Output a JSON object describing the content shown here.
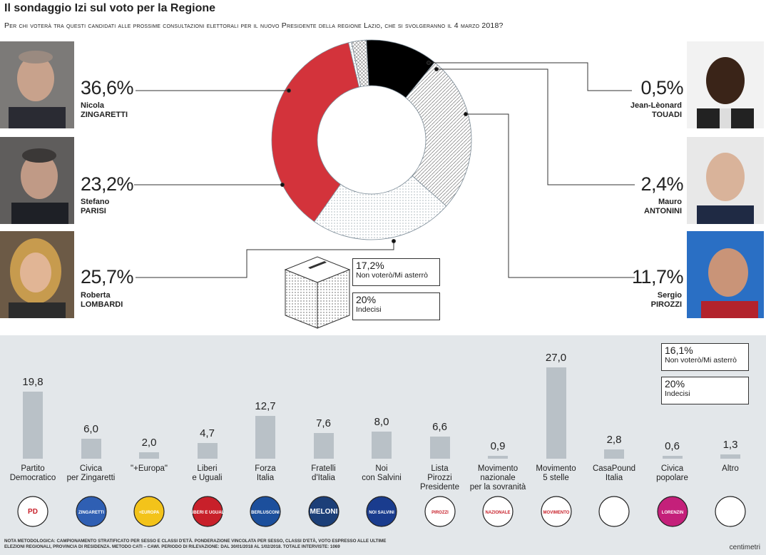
{
  "header": {
    "title": "Il sondaggio Izi sul voto per la Regione",
    "subtitle": "Per chi voterà tra questi candidati alle prossime consultazioni elettorali per il nuovo Presidente della regione Lazio, che si svolgeranno il 4 marzo 2018?"
  },
  "chart_data": [
    {
      "type": "pie",
      "categories": [
        "Nicola ZINGARETTI",
        "Jean-Lèonard TOUADI",
        "Mauro ANTONINI",
        "Sergio PIROZZI",
        "Roberta LOMBARDI",
        "Stefano PARISI"
      ],
      "values": [
        36.6,
        0.5,
        2.4,
        11.7,
        25.7,
        23.2
      ],
      "colors": [
        "#d3333b",
        "#ffffff",
        "#ffffff",
        "#000000",
        "#ffffff",
        "#ffffff"
      ],
      "patterns": [
        "solid",
        "dots",
        "crosshatch",
        "solid",
        "diagonal",
        "dots"
      ]
    },
    {
      "type": "bar",
      "categories": [
        "Partito Democratico",
        "Civica per Zingaretti",
        "\"+Europa\"",
        "Liberi e Uguali",
        "Forza Italia",
        "Fratelli d'Italia",
        "Noi con Salvini",
        "Lista Pirozzi Presidente",
        "Movimento nazionale per la sovranità",
        "Movimento 5 stelle",
        "CasaPound Italia",
        "Civica popolare",
        "Altro"
      ],
      "values": [
        19.8,
        6.0,
        2.0,
        4.7,
        12.7,
        7.6,
        8.0,
        6.6,
        0.9,
        27.0,
        2.8,
        0.6,
        1.3
      ],
      "ylim": [
        0,
        27.0
      ],
      "bar_color": "#b9c1c7"
    }
  ],
  "candidates": {
    "zingaretti": {
      "pct": "36,6%",
      "first": "Nicola",
      "last": "ZINGARETTI"
    },
    "parisi": {
      "pct": "23,2%",
      "first": "Stefano",
      "last": "PARISI"
    },
    "lombardi": {
      "pct": "25,7%",
      "first": "Roberta",
      "last": "LOMBARDI"
    },
    "touadi": {
      "pct": "0,5%",
      "first": "Jean-Lèonard",
      "last": "TOUADI"
    },
    "antonini": {
      "pct": "2,4%",
      "first": "Mauro",
      "last": "ANTONINI"
    },
    "pirozzi": {
      "pct": "11,7%",
      "first": "Sergio",
      "last": "PIROZZI"
    }
  },
  "top_boxes": {
    "abstain": {
      "value": "17,2%",
      "label": "Non voterò/Mi asterrò"
    },
    "undecided": {
      "value": "20%",
      "label": "Indecisi"
    }
  },
  "bars": {
    "labels": [
      [
        "Partito",
        "Democratico"
      ],
      [
        "Civica",
        "per Zingaretti"
      ],
      [
        "\"+Europa\""
      ],
      [
        "Liberi",
        "e Uguali"
      ],
      [
        "Forza",
        "Italia"
      ],
      [
        "Fratelli",
        "d'Italia"
      ],
      [
        "Noi",
        "con Salvini"
      ],
      [
        "Lista",
        "Pirozzi",
        "Presidente"
      ],
      [
        "Movimento",
        "nazionale",
        "per la sovranità"
      ],
      [
        "Movimento",
        "5 stelle"
      ],
      [
        "CasaPound",
        "Italia"
      ],
      [
        "Civica",
        "popolare"
      ],
      [
        "Altro"
      ]
    ],
    "display_values": [
      "19,8",
      "6,0",
      "2,0",
      "4,7",
      "12,7",
      "7,6",
      "8,0",
      "6,6",
      "0,9",
      "27,0",
      "2,8",
      "0,6",
      "1,3"
    ]
  },
  "bottom_boxes": {
    "abstain": {
      "value": "16,1%",
      "label": "Non voterò/Mi asterrò"
    },
    "undecided": {
      "value": "20%",
      "label": "Indecisi"
    }
  },
  "logos": [
    {
      "name": "pd-logo",
      "text": "PD",
      "color": "#ffffff"
    },
    {
      "name": "civica-zingaretti-logo",
      "text": "ZINGARETTI",
      "color": "#2f5fb3"
    },
    {
      "name": "piu-europa-logo",
      "text": "+EUROPA",
      "color": "#f3c31a"
    },
    {
      "name": "liberi-uguali-logo",
      "text": "LIBERI E UGUALI",
      "color": "#c8202a"
    },
    {
      "name": "forza-italia-logo",
      "text": "BERLUSCONI",
      "color": "#1c4f9c"
    },
    {
      "name": "fratelli-italia-logo",
      "text": "MELONI",
      "color": "#1c3f78"
    },
    {
      "name": "noi-salvini-logo",
      "text": "NOI SALVINI",
      "color": "#1a3c8e"
    },
    {
      "name": "lista-pirozzi-logo",
      "text": "PIROZZI",
      "color": "#ffffff"
    },
    {
      "name": "mns-logo",
      "text": "NAZIONALE",
      "color": "#ffffff"
    },
    {
      "name": "m5s-logo",
      "text": "MOVIMENTO",
      "color": "#ffffff"
    },
    {
      "name": "casapound-logo",
      "text": "",
      "color": "#ffffff"
    },
    {
      "name": "civica-popolare-logo",
      "text": "LORENZIN",
      "color": "#c4207a"
    },
    {
      "name": "altro-logo",
      "text": "",
      "color": "#ffffff"
    }
  ],
  "footer": {
    "note": "Nota metodologica: Campionamento stratificato per sesso e classi d'età. Ponderazione vincolata per sesso, classi d'età, voto espresso alle ultime elezioni regionali, provincia di residenza. Metodo CATI – CAWI. Periodo di rilevazione: dal 30/01/2018 al 1/02/2018. Totale interviste: 1069",
    "credit": "centimetri"
  }
}
